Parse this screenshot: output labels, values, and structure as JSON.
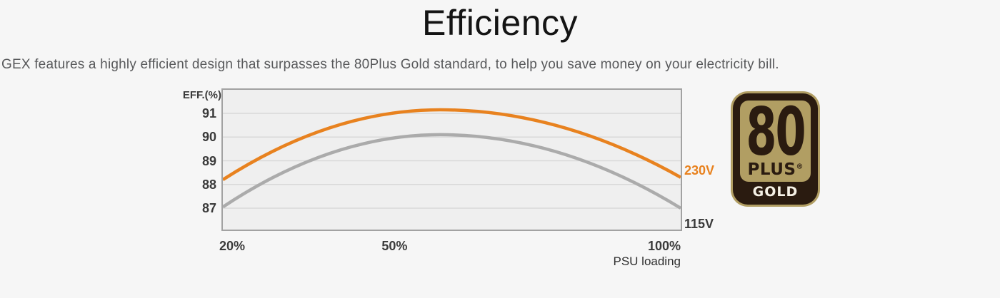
{
  "page": {
    "background": "#f6f6f6"
  },
  "header": {
    "title": "Efficiency",
    "subtitle": "GEX features a highly efficient design that surpasses the 80Plus Gold standard, to help you save money on your electricity bill."
  },
  "chart_data": {
    "type": "line",
    "title": "",
    "ylabel": "EFF.(%)",
    "xlabel": "PSU loading",
    "y_ticks": [
      91,
      90,
      89,
      88,
      87
    ],
    "ylim": [
      86.1,
      92.0
    ],
    "x_ticks": [
      {
        "label": "20%",
        "pct": 20,
        "align": "left"
      },
      {
        "label": "50%",
        "pct": 50,
        "align": "center"
      },
      {
        "label": "100%",
        "pct": 100,
        "align": "right"
      }
    ],
    "xlim_pct": [
      20,
      100
    ],
    "grid": true,
    "plot_bg": "#efefef",
    "grid_color": "#d9d9d9",
    "border_color": "#a2a2a2",
    "legend_position": "right-of-plot",
    "series": [
      {
        "name": "115V",
        "color": "#ababab",
        "label_color": "#3b3b3b",
        "points": [
          {
            "load_pct": 20,
            "eff": 87.05
          },
          {
            "load_pct": 58,
            "eff": 90.1
          },
          {
            "load_pct": 100,
            "eff": 87.0
          }
        ]
      },
      {
        "name": "230V",
        "color": "#e8821f",
        "label_color": "#e8821f",
        "points": [
          {
            "load_pct": 20,
            "eff": 88.2
          },
          {
            "load_pct": 58,
            "eff": 91.15
          },
          {
            "load_pct": 100,
            "eff": 88.3
          }
        ]
      }
    ]
  },
  "badge": {
    "number": "80",
    "plus": "PLUS",
    "registered": "®",
    "tier": "GOLD",
    "gold_color": "#b19e63",
    "dark_color": "#2a1b10",
    "tier_text_color": "#f6f1e6"
  }
}
